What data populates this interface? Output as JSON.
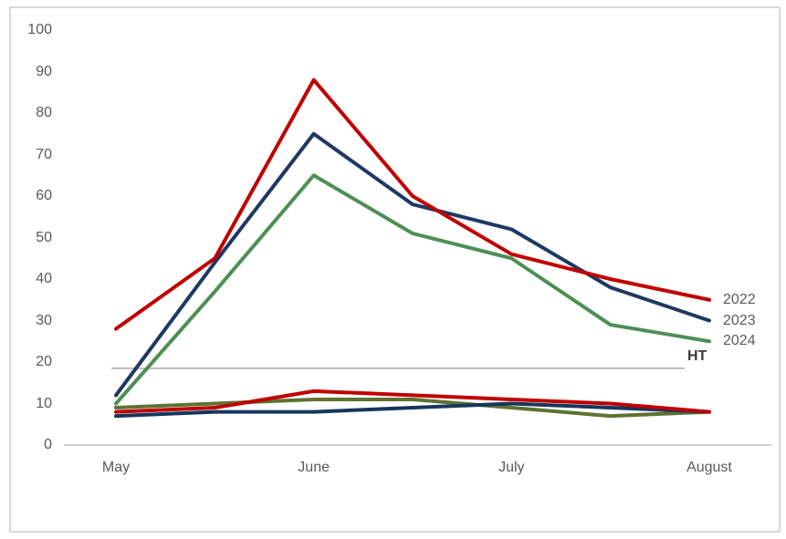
{
  "chart_data": {
    "type": "line",
    "title": "",
    "xlabel": "",
    "ylabel": "",
    "x_categories": [
      "May",
      "June",
      "July",
      "August"
    ],
    "x": [
      "May",
      "mid May-Jun",
      "June",
      "mid Jun-Jul",
      "July",
      "mid Jul-Aug",
      "August"
    ],
    "ylim": [
      0,
      100
    ],
    "y_ticks": [
      100,
      90,
      80,
      70,
      60,
      50,
      40,
      30,
      20,
      10,
      0
    ],
    "grid": "off",
    "legend_position": "end-of-line-labels-right",
    "series": [
      {
        "id": "upper-2022",
        "label": "2022",
        "color": "#C00000",
        "values": [
          28,
          45,
          88,
          60,
          46,
          40,
          35
        ]
      },
      {
        "id": "upper-2023",
        "label": "2023",
        "color": "#1F3864",
        "values": [
          12,
          44,
          75,
          58,
          52,
          38,
          30
        ]
      },
      {
        "id": "upper-2024",
        "label": "2024",
        "color": "#4D8F55",
        "values": [
          10,
          37,
          65,
          51,
          45,
          29,
          25
        ]
      },
      {
        "id": "lower-red",
        "label": "",
        "color": "#C00000",
        "values": [
          8,
          9,
          13,
          12,
          11,
          10,
          8
        ]
      },
      {
        "id": "lower-olive",
        "label": "",
        "color": "#5E7232",
        "values": [
          9,
          10,
          11,
          11,
          9,
          7,
          8
        ]
      },
      {
        "id": "lower-navy",
        "label": "",
        "color": "#17365D",
        "values": [
          7,
          8,
          8,
          9,
          10,
          9,
          8
        ]
      }
    ],
    "threshold": {
      "label": "HT",
      "value": 18.5,
      "color": "#808080"
    }
  },
  "axis": {
    "tick_color": "#595959",
    "x_axis_line_color": "#BFBFBF"
  },
  "frame_border_color": "#D9D9D9"
}
